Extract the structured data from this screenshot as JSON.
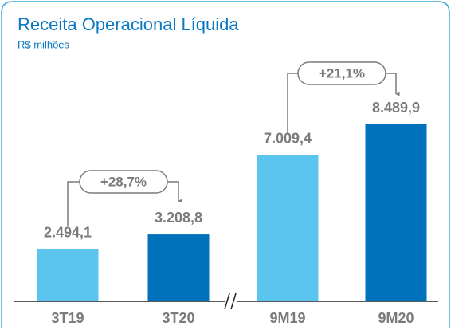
{
  "chart_data": {
    "type": "bar",
    "title": "Receita Operacional Líquida",
    "subtitle": "R$ milhões",
    "categories": [
      "3T19",
      "3T20",
      "9M19",
      "9M20"
    ],
    "values": [
      2494.1,
      3208.8,
      7009.4,
      8489.9
    ],
    "value_labels": [
      "2.494,1",
      "3.208,8",
      "7.009,4",
      "8.489,9"
    ],
    "colors": [
      "#5bc4ef",
      "#0072bb",
      "#5bc4ef",
      "#0072bb"
    ],
    "annotations": [
      "+28,7%",
      "+21,1%"
    ]
  }
}
